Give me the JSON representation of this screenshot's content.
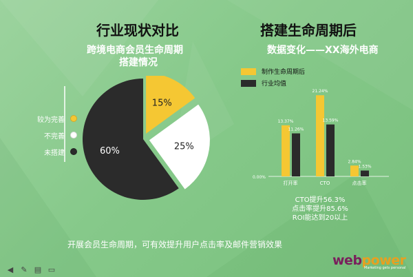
{
  "slide": {
    "left_title": "行业现状对比",
    "left_subtitle_line1": "跨境电商会员生命周期",
    "left_subtitle_line2": "搭建情况",
    "right_title": "搭建生命周期后",
    "right_subtitle": "数据变化——XX海外电商",
    "notes": [
      "CTO提升56.3%",
      "点击率提升85.6%",
      "ROI能达到20以上"
    ],
    "footer": "开展会员生命周期，可有效提升用户点击率及邮件营销效果",
    "logo_text": "webpower",
    "logo_tagline": "Marketing gets personal"
  },
  "colors": {
    "complete": "#f5c733",
    "incomplete": "#ffffff",
    "not_built": "#2b2b2b",
    "series_after": "#f5c733",
    "series_avg": "#2b2b2b",
    "logo_web": "#7a1f5c",
    "logo_power": "#e8a020"
  },
  "icons": [
    "arrow-left-icon",
    "pencil-icon",
    "slides-icon",
    "monitor-icon"
  ],
  "chart_data": [
    {
      "type": "pie",
      "legend_position": "left",
      "slices": [
        {
          "label": "较为完善",
          "value": 15,
          "display": "15%"
        },
        {
          "label": "不完善",
          "value": 25,
          "display": "25%"
        },
        {
          "label": "未搭建",
          "value": 60,
          "display": "60%"
        }
      ]
    },
    {
      "type": "bar",
      "categories": [
        "打开率",
        "CTO",
        "点击率"
      ],
      "series": [
        {
          "name": "制作生命周期后",
          "values": [
            13.37,
            21.24,
            2.84
          ],
          "labels": [
            "13.37%",
            "21.24%",
            "2.84%"
          ]
        },
        {
          "name": "行业均值",
          "values": [
            11.26,
            13.59,
            1.53
          ],
          "labels": [
            "11.26%",
            "13.59%",
            "1.53%"
          ]
        }
      ],
      "y_tick_labels": [
        "0.00%"
      ],
      "ylim": [
        0,
        22
      ],
      "legend_position": "top-left",
      "grid": false
    }
  ]
}
